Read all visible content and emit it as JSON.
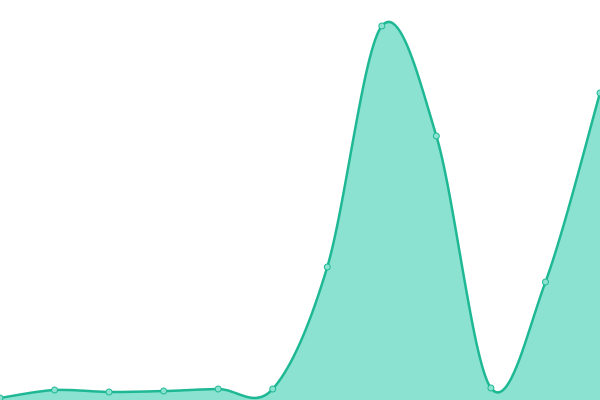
{
  "chart_data": {
    "type": "area",
    "x": [
      0,
      1,
      2,
      3,
      4,
      5,
      6,
      7,
      8,
      9,
      10,
      11
    ],
    "series": [
      {
        "color": "#1fb894",
        "fill": "#8be2d1",
        "values": [
          2,
          10,
          8,
          9,
          11,
          11,
          133,
          374,
          264,
          12,
          118,
          307
        ]
      }
    ],
    "xlim": [
      0,
      11
    ],
    "ylim": [
      0,
      400
    ],
    "smooth": true,
    "markers": true
  }
}
